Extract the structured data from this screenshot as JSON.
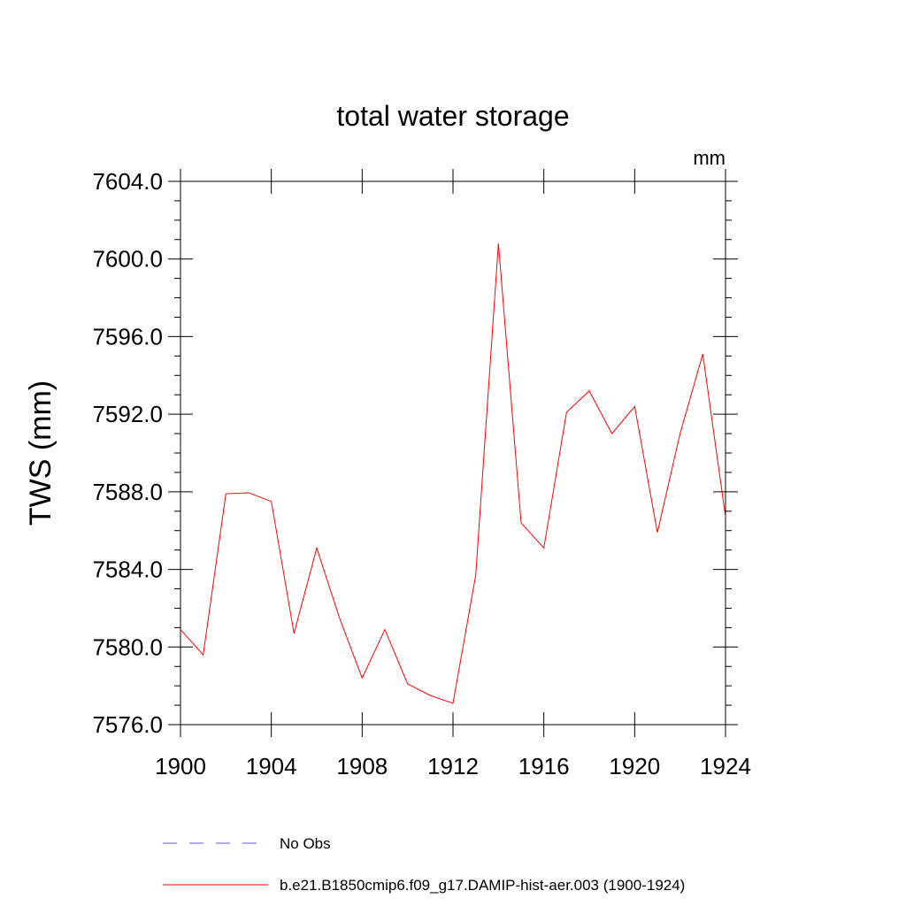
{
  "chart_data": {
    "type": "line",
    "title": "total water storage",
    "units_label": "mm",
    "ylabel": "TWS  (mm)",
    "xlabel": "",
    "xlim": [
      1900,
      1924
    ],
    "ylim": [
      7576.0,
      7604.0
    ],
    "x_ticks": [
      1900,
      1904,
      1908,
      1912,
      1916,
      1920,
      1924
    ],
    "x_tick_labels": [
      "1900",
      "1904",
      "1908",
      "1912",
      "1916",
      "1920",
      "1924"
    ],
    "y_ticks": [
      7576.0,
      7580.0,
      7584.0,
      7588.0,
      7592.0,
      7596.0,
      7600.0,
      7604.0
    ],
    "y_tick_labels": [
      "7576.0",
      "7580.0",
      "7584.0",
      "7588.0",
      "7592.0",
      "7596.0",
      "7600.0",
      "7604.0"
    ],
    "grid": false,
    "legend_position": "bottom",
    "legend": [
      {
        "label": "No Obs",
        "color": "#6a5acd",
        "style": "dashed"
      },
      {
        "label": "b.e21.B1850cmip6.f09_g17.DAMIP-hist-aer.003 (1900-1924)",
        "color": "#ff0000",
        "style": "solid"
      }
    ],
    "series": [
      {
        "name": "b.e21.B1850cmip6.f09_g17.DAMIP-hist-aer.003 (1900-1924)",
        "color": "#ff0000",
        "x": [
          1900,
          1901,
          1902,
          1903,
          1904,
          1905,
          1906,
          1907,
          1908,
          1909,
          1910,
          1911,
          1912,
          1913,
          1914,
          1915,
          1916,
          1917,
          1918,
          1919,
          1920,
          1921,
          1922,
          1923,
          1924
        ],
        "y": [
          7580.9,
          7579.6,
          7587.9,
          7587.95,
          7587.5,
          7580.7,
          7585.1,
          7581.5,
          7578.4,
          7580.9,
          7578.1,
          7577.5,
          7577.1,
          7583.7,
          7600.8,
          7586.4,
          7585.1,
          7592.1,
          7593.2,
          7591.0,
          7592.4,
          7585.9,
          7591.0,
          7595.1,
          7586.7
        ]
      }
    ]
  }
}
